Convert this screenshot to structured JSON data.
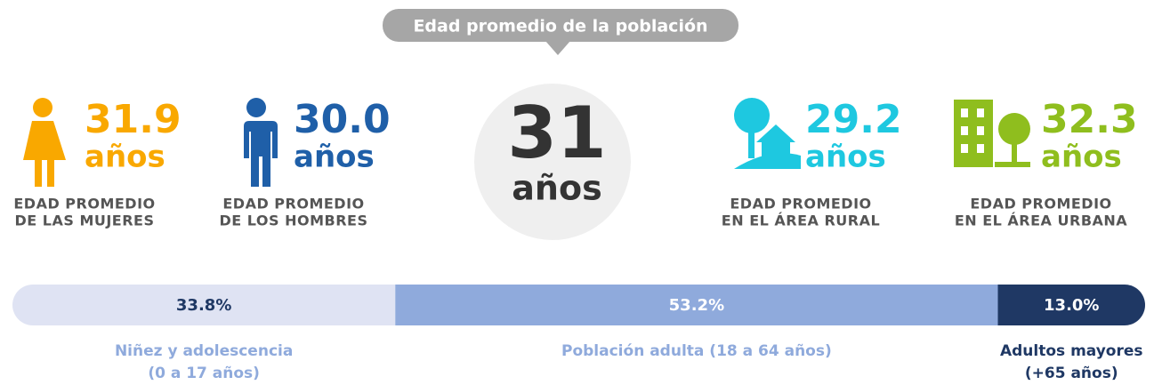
{
  "header": {
    "title": "Edad promedio de la población"
  },
  "center": {
    "value": "31",
    "unit": "años"
  },
  "stats": [
    {
      "value": "31.9",
      "unit": "años",
      "label_lines": [
        "EDAD PROMEDIO",
        "DE LAS MUJERES"
      ],
      "color": "#f9a800"
    },
    {
      "value": "30.0",
      "unit": "años",
      "label_lines": [
        "EDAD PROMEDIO",
        "DE LOS HOMBRES"
      ],
      "color": "#1f5fa8"
    },
    {
      "value": "29.2",
      "unit": "años",
      "label_lines": [
        "EDAD PROMEDIO",
        "EN EL ÁREA RURAL"
      ],
      "color": "#1ec8e0"
    },
    {
      "value": "32.3",
      "unit": "años",
      "label_lines": [
        "EDAD PROMEDIO",
        "EN EL ÁREA URBANA"
      ],
      "color": "#8fbe1e"
    }
  ],
  "distribution": {
    "segments": [
      {
        "value": 33.8,
        "value_label": "33.8%",
        "name_lines": [
          "Niñez y adolescencia",
          "(0 a 17 años)"
        ],
        "color": "#dfe3f3",
        "text_color": "#1f3864",
        "name_color": "#8faadc"
      },
      {
        "value": 53.2,
        "value_label": "53.2%",
        "name_lines": [
          "Población adulta (18 a 64 años)"
        ],
        "color": "#8faadc",
        "text_color": "#ffffff",
        "name_color": "#8faadc"
      },
      {
        "value": 13.0,
        "value_label": "13.0%",
        "name_lines": [
          "Adultos mayores",
          "(+65 años)"
        ],
        "color": "#1f3864",
        "text_color": "#ffffff",
        "name_color": "#1f3864"
      }
    ]
  }
}
